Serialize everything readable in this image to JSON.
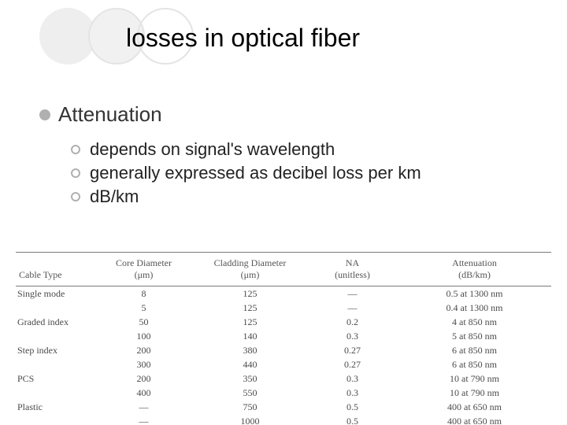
{
  "title": "losses in optical fiber",
  "bullets": {
    "l1": "Attenuation",
    "l2": [
      "depends on signal's wavelength",
      "generally expressed as decibel loss per km",
      "dB/km"
    ]
  },
  "table": {
    "columns": [
      "Cable Type",
      "Core Diameter\n(μm)",
      "Cladding Diameter\n(μm)",
      "NA\n(unitless)",
      "Attenuation\n(dB/km)"
    ],
    "rows": [
      [
        "Single mode",
        "8",
        "125",
        "—",
        "0.5 at 1300 nm"
      ],
      [
        "",
        "5",
        "125",
        "—",
        "0.4 at 1300 nm"
      ],
      [
        "Graded index",
        "50",
        "125",
        "0.2",
        "4 at 850 nm"
      ],
      [
        "",
        "100",
        "140",
        "0.3",
        "5 at 850 nm"
      ],
      [
        "Step index",
        "200",
        "380",
        "0.27",
        "6 at 850 nm"
      ],
      [
        "",
        "300",
        "440",
        "0.27",
        "6 at 850 nm"
      ],
      [
        "PCS",
        "200",
        "350",
        "0.3",
        "10 at 790 nm"
      ],
      [
        "",
        "400",
        "550",
        "0.3",
        "10 at 790 nm"
      ],
      [
        "Plastic",
        "—",
        "750",
        "0.5",
        "400 at 650 nm"
      ],
      [
        "",
        "—",
        "1000",
        "0.5",
        "400 at 650 nm"
      ]
    ]
  },
  "style": {
    "title_fontsize": 32,
    "l1_fontsize": 26,
    "l2_fontsize": 22,
    "bullet_dot_color": "#b0b0b0",
    "table_border_color": "#7a7a7a",
    "table_head_fontsize": 12,
    "table_body_fontsize": 12,
    "table_text_color": "#4a4a4a",
    "circle_fill": "#eeeeee",
    "circle_border": "#e4e4e4"
  }
}
